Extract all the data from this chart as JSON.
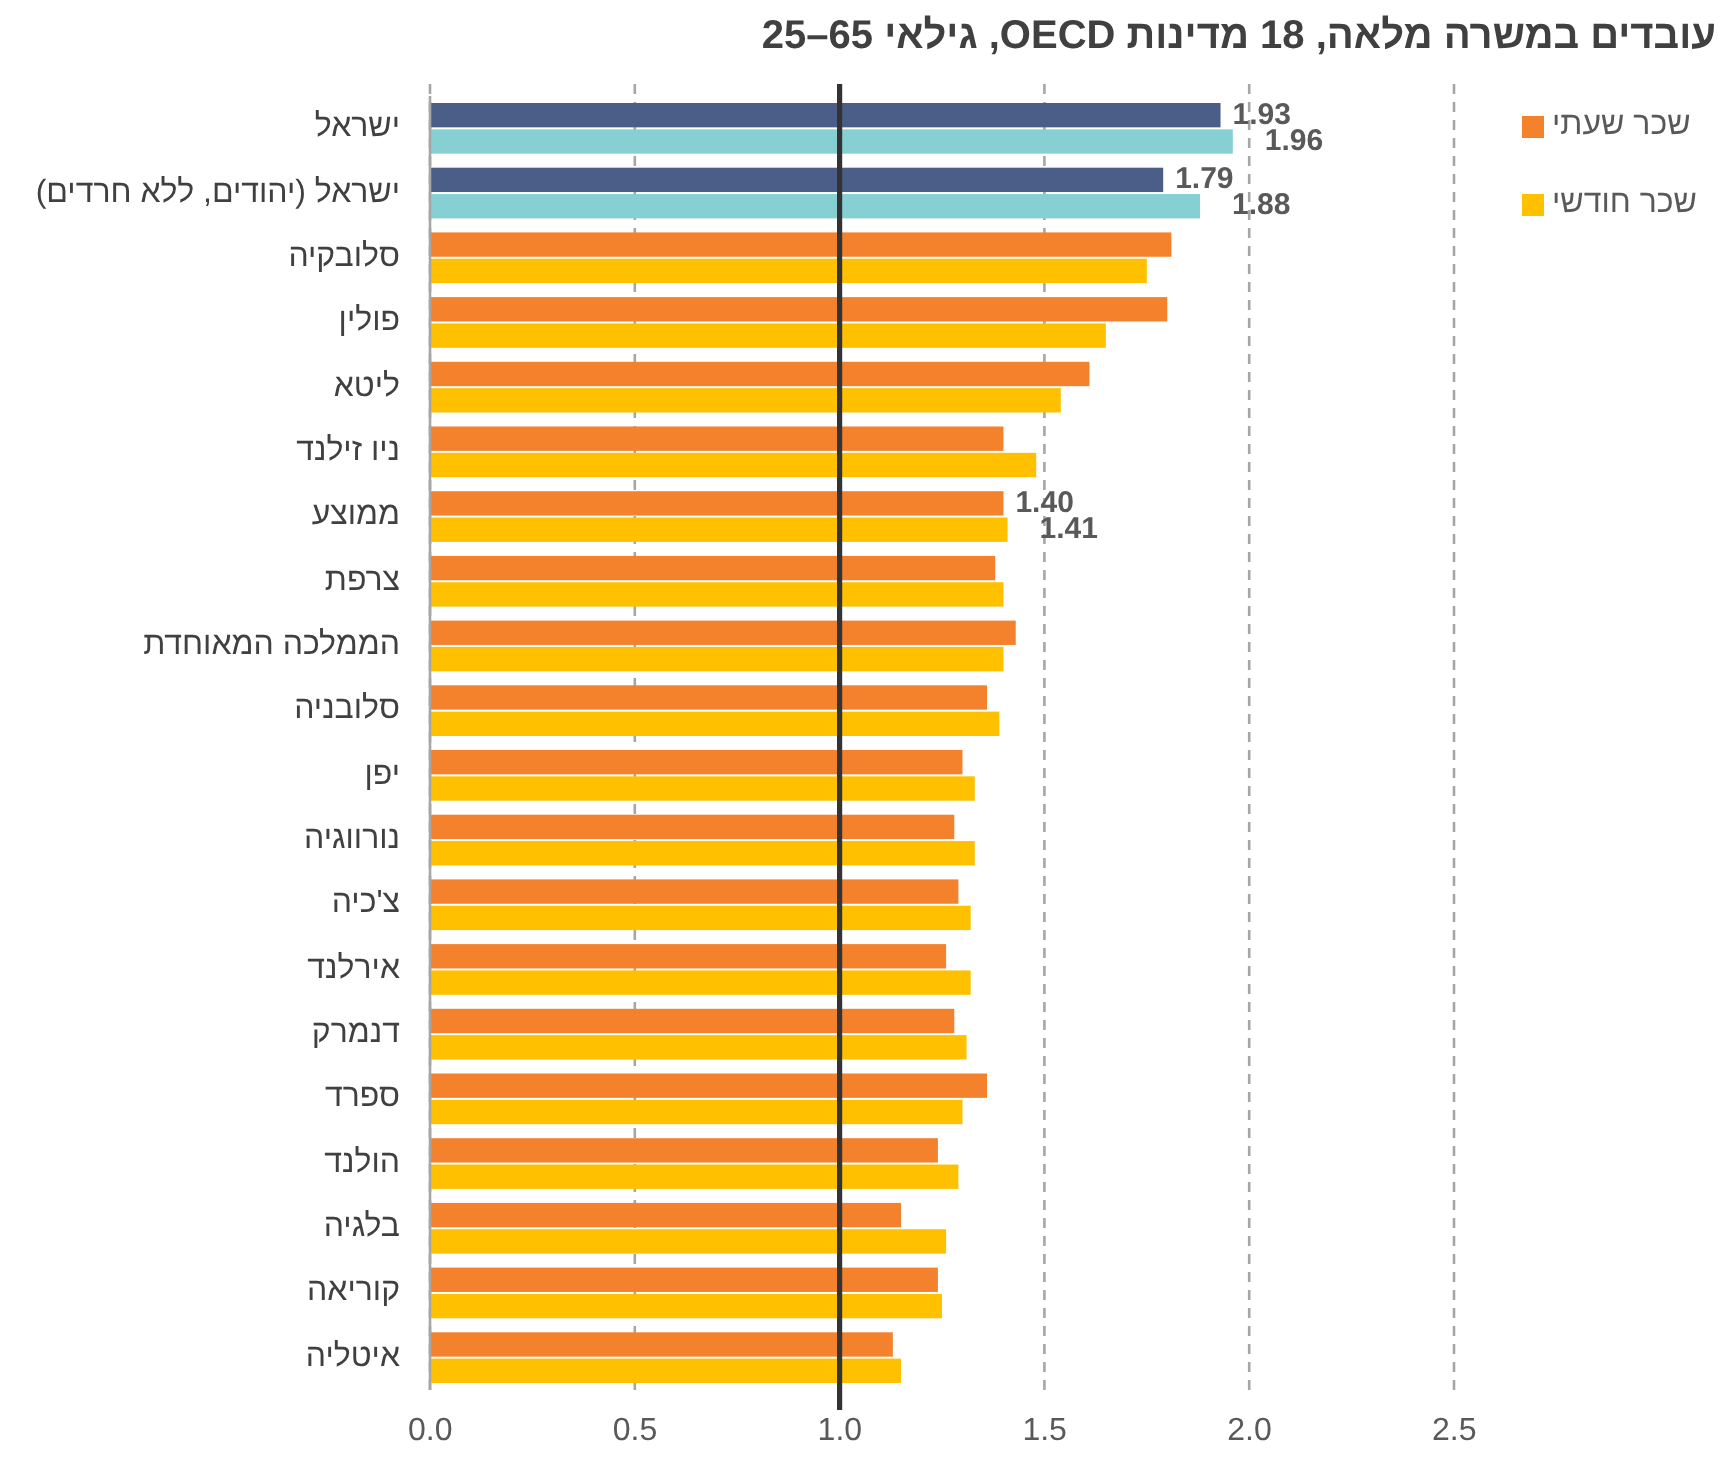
{
  "chart_data": {
    "type": "bar",
    "orientation": "horizontal",
    "title": "עובדים במשרה מלאה, 18 מדינות OECD,  גילאי 65–25",
    "categories": [
      "ישראל",
      "ישראל (יהודים, ללא חרדים)",
      "סלובקיה",
      "פולין",
      "ליטא",
      "ניו זילנד",
      "ממוצע",
      "צרפת",
      "הממלכה המאוחדת",
      "סלובניה",
      "יפן",
      "נורווגיה",
      "צ'כיה",
      "אירלנד",
      "דנמרק",
      "ספרד",
      "הולנד",
      "בלגיה",
      "קוריאה",
      "איטליה"
    ],
    "series": [
      {
        "name": "שכר שעתי",
        "color": "#f4822c",
        "colors": [
          "#4a5e88",
          "#4a5e88",
          "#f4822c",
          "#f4822c",
          "#f4822c",
          "#f4822c",
          "#f4822c",
          "#f4822c",
          "#f4822c",
          "#f4822c",
          "#f4822c",
          "#f4822c",
          "#f4822c",
          "#f4822c",
          "#f4822c",
          "#f4822c",
          "#f4822c",
          "#f4822c",
          "#f4822c",
          "#f4822c"
        ],
        "values": [
          1.93,
          1.79,
          1.81,
          1.8,
          1.61,
          1.4,
          1.4,
          1.38,
          1.43,
          1.36,
          1.3,
          1.28,
          1.29,
          1.26,
          1.28,
          1.36,
          1.24,
          1.15,
          1.24,
          1.13
        ],
        "value_labels": [
          "1.93",
          "1.79",
          null,
          null,
          null,
          null,
          "1.40",
          null,
          null,
          null,
          null,
          null,
          null,
          null,
          null,
          null,
          null,
          null,
          null,
          null
        ]
      },
      {
        "name": "שכר חודשי",
        "color": "#ffc000",
        "colors": [
          "#86d0d4",
          "#86d0d4",
          "#ffc000",
          "#ffc000",
          "#ffc000",
          "#ffc000",
          "#ffc000",
          "#ffc000",
          "#ffc000",
          "#ffc000",
          "#ffc000",
          "#ffc000",
          "#ffc000",
          "#ffc000",
          "#ffc000",
          "#ffc000",
          "#ffc000",
          "#ffc000",
          "#ffc000",
          "#ffc000"
        ],
        "values": [
          1.96,
          1.88,
          1.75,
          1.65,
          1.54,
          1.48,
          1.41,
          1.4,
          1.4,
          1.39,
          1.33,
          1.33,
          1.32,
          1.32,
          1.31,
          1.3,
          1.29,
          1.26,
          1.25,
          1.15
        ],
        "value_labels": [
          "1.96",
          "1.88",
          null,
          null,
          null,
          null,
          "1.41",
          null,
          null,
          null,
          null,
          null,
          null,
          null,
          null,
          null,
          null,
          null,
          null,
          null
        ]
      }
    ],
    "xlim": [
      0,
      2.5
    ],
    "xticks": [
      {
        "value": 0,
        "label": "0.0"
      },
      {
        "value": 0.5,
        "label": "0.5"
      },
      {
        "value": 1,
        "label": "1.0"
      },
      {
        "value": 1.5,
        "label": "1.5"
      },
      {
        "value": 2,
        "label": "2.0"
      },
      {
        "value": 2.5,
        "label": "2.5"
      }
    ],
    "ref_lines": [
      {
        "axis": "x",
        "value": 1,
        "color": "#333333"
      }
    ],
    "grid": "x",
    "legend": "top right"
  }
}
